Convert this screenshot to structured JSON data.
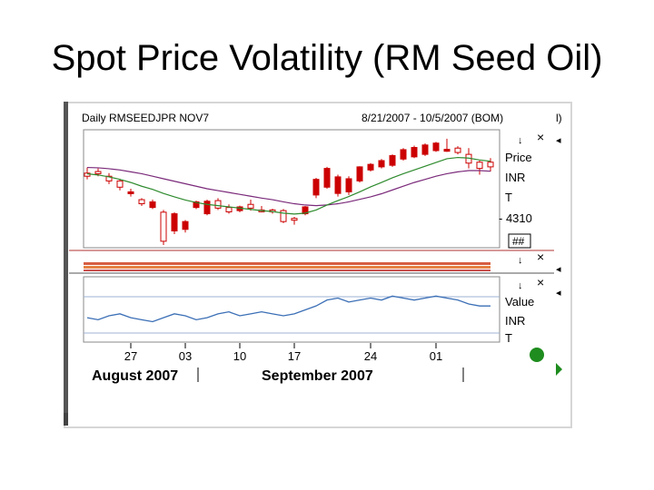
{
  "slide_title": "Spot Price Volatility (RM Seed Oil)",
  "header": {
    "series_code": "Daily RMSEEDJPR NOV7",
    "date_range": "8/21/2007 - 10/5/2007 (BOM)",
    "stray": "l)"
  },
  "price_panel": {
    "labels": [
      "Price",
      "INR",
      "T"
    ],
    "tick_label": "- 4310",
    "hash_box": "##"
  },
  "value_panel": {
    "labels": [
      "Value",
      "INR",
      "T"
    ]
  },
  "panel_buttons": {
    "down": "↓",
    "close": "×",
    "left": "◂"
  },
  "colors": {
    "up_candle": "#cc0000",
    "down_candle_fill": "#ffffff",
    "ma_fast": "#2e8b2e",
    "ma_slow": "#7a2a7a",
    "value_line": "#3b6fb6",
    "grid": "#9db3d6",
    "status_dot": "#1e8c1e"
  },
  "chart_data": {
    "type": "candlestick",
    "x_ticks": [
      "27",
      "03",
      "10",
      "17",
      "24",
      "01"
    ],
    "months": [
      "August 2007",
      "September 2007"
    ],
    "candles": [
      {
        "o": 4480,
        "h": 4498,
        "l": 4460,
        "c": 4470
      },
      {
        "o": 4485,
        "h": 4495,
        "l": 4470,
        "c": 4478
      },
      {
        "o": 4470,
        "h": 4480,
        "l": 4445,
        "c": 4455
      },
      {
        "o": 4455,
        "h": 4462,
        "l": 4425,
        "c": 4435
      },
      {
        "o": 4418,
        "h": 4430,
        "l": 4405,
        "c": 4420
      },
      {
        "o": 4395,
        "h": 4400,
        "l": 4375,
        "c": 4382
      },
      {
        "o": 4370,
        "h": 4395,
        "l": 4365,
        "c": 4388
      },
      {
        "o": 4355,
        "h": 4362,
        "l": 4250,
        "c": 4262
      },
      {
        "o": 4295,
        "h": 4355,
        "l": 4285,
        "c": 4350
      },
      {
        "o": 4300,
        "h": 4330,
        "l": 4290,
        "c": 4325
      },
      {
        "o": 4370,
        "h": 4392,
        "l": 4365,
        "c": 4388
      },
      {
        "o": 4350,
        "h": 4395,
        "l": 4345,
        "c": 4390
      },
      {
        "o": 4392,
        "h": 4400,
        "l": 4362,
        "c": 4368
      },
      {
        "o": 4370,
        "h": 4380,
        "l": 4350,
        "c": 4356
      },
      {
        "o": 4360,
        "h": 4376,
        "l": 4355,
        "c": 4372
      },
      {
        "o": 4380,
        "h": 4395,
        "l": 4360,
        "c": 4368
      },
      {
        "o": 4362,
        "h": 4375,
        "l": 4355,
        "c": 4360
      },
      {
        "o": 4362,
        "h": 4366,
        "l": 4350,
        "c": 4356
      },
      {
        "o": 4360,
        "h": 4365,
        "l": 4320,
        "c": 4325
      },
      {
        "o": 4335,
        "h": 4340,
        "l": 4315,
        "c": 4330
      },
      {
        "o": 4350,
        "h": 4375,
        "l": 4345,
        "c": 4372
      },
      {
        "o": 4410,
        "h": 4465,
        "l": 4400,
        "c": 4460
      },
      {
        "o": 4435,
        "h": 4500,
        "l": 4430,
        "c": 4495
      },
      {
        "o": 4415,
        "h": 4475,
        "l": 4405,
        "c": 4468
      },
      {
        "o": 4420,
        "h": 4470,
        "l": 4410,
        "c": 4462
      },
      {
        "o": 4455,
        "h": 4502,
        "l": 4450,
        "c": 4500
      },
      {
        "o": 4490,
        "h": 4512,
        "l": 4485,
        "c": 4508
      },
      {
        "o": 4500,
        "h": 4525,
        "l": 4495,
        "c": 4520
      },
      {
        "o": 4505,
        "h": 4540,
        "l": 4500,
        "c": 4536
      },
      {
        "o": 4525,
        "h": 4560,
        "l": 4520,
        "c": 4555
      },
      {
        "o": 4532,
        "h": 4568,
        "l": 4528,
        "c": 4562
      },
      {
        "o": 4540,
        "h": 4575,
        "l": 4535,
        "c": 4570
      },
      {
        "o": 4552,
        "h": 4580,
        "l": 4548,
        "c": 4576
      },
      {
        "o": 4550,
        "h": 4590,
        "l": 4548,
        "c": 4556
      },
      {
        "o": 4560,
        "h": 4566,
        "l": 4540,
        "c": 4546
      },
      {
        "o": 4540,
        "h": 4560,
        "l": 4495,
        "c": 4512
      },
      {
        "o": 4515,
        "h": 4520,
        "l": 4475,
        "c": 4495
      },
      {
        "o": 4515,
        "h": 4528,
        "l": 4485,
        "c": 4500
      }
    ],
    "ma_fast": [
      4478,
      4474,
      4468,
      4460,
      4450,
      4438,
      4428,
      4415,
      4404,
      4394,
      4386,
      4380,
      4376,
      4372,
      4368,
      4364,
      4360,
      4357,
      4352,
      4349,
      4352,
      4362,
      4378,
      4392,
      4405,
      4420,
      4436,
      4450,
      4465,
      4478,
      4490,
      4502,
      4514,
      4526,
      4530,
      4528,
      4522,
      4518
    ],
    "ma_slow": [
      4498,
      4497,
      4494,
      4490,
      4484,
      4478,
      4470,
      4462,
      4454,
      4446,
      4438,
      4430,
      4424,
      4418,
      4412,
      4406,
      4400,
      4395,
      4388,
      4382,
      4378,
      4376,
      4378,
      4382,
      4388,
      4396,
      4404,
      4414,
      4426,
      4438,
      4450,
      4460,
      4470,
      4478,
      4484,
      4488,
      4488,
      4486
    ],
    "y_range": [
      4250,
      4610
    ],
    "value_series": [
      41,
      40,
      42,
      43,
      41,
      40,
      39,
      41,
      43,
      42,
      40,
      41,
      43,
      44,
      42,
      43,
      44,
      43,
      42,
      43,
      45,
      47,
      50,
      51,
      49,
      50,
      51,
      50,
      52,
      51,
      50,
      51,
      52,
      51,
      50,
      48,
      47,
      47
    ],
    "value_range": [
      30,
      60
    ]
  }
}
